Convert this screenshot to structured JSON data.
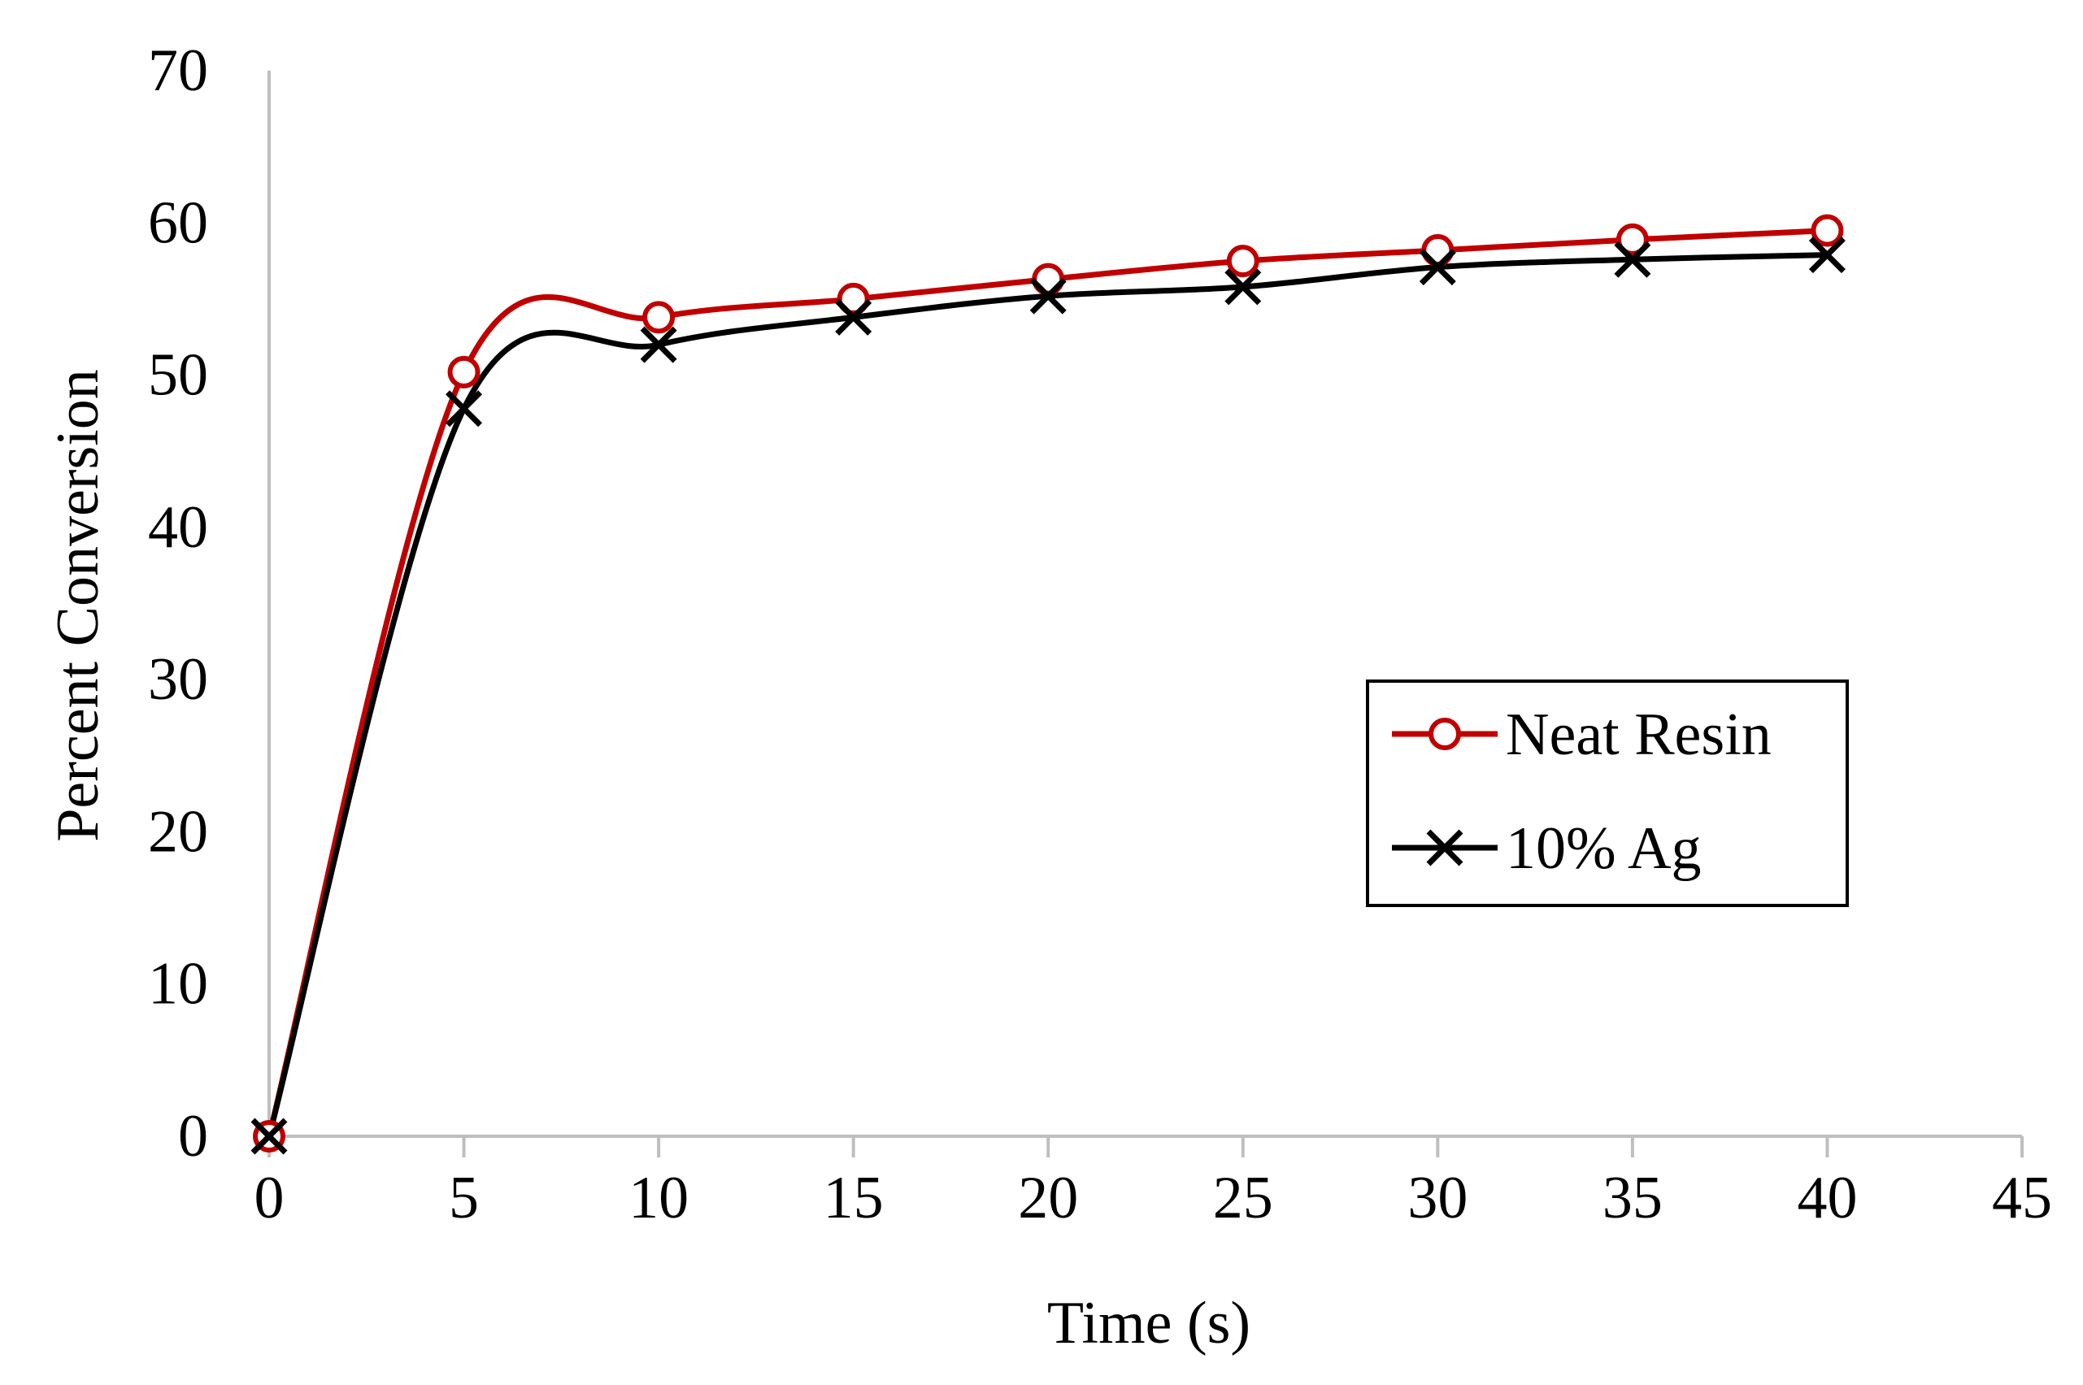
{
  "chart_data": {
    "type": "line",
    "title": "",
    "xlabel": "Time (s)",
    "ylabel": "Percent Conversion",
    "xlim": [
      0,
      45
    ],
    "ylim": [
      0,
      70
    ],
    "xticks": [
      0,
      5,
      10,
      15,
      20,
      25,
      30,
      35,
      40,
      45
    ],
    "yticks": [
      0,
      10,
      20,
      30,
      40,
      50,
      60,
      70
    ],
    "grid": false,
    "smooth": true,
    "legend_position": "right-center",
    "x": [
      0,
      5,
      10,
      15,
      20,
      25,
      30,
      35,
      40
    ],
    "series": [
      {
        "name": "Neat Resin",
        "marker": "circle",
        "color": "#c00000",
        "values": [
          0,
          50.2,
          53.8,
          55.0,
          56.3,
          57.5,
          58.2,
          58.9,
          59.5
        ]
      },
      {
        "name": "10% Ag",
        "marker": "x",
        "color": "#000000",
        "values": [
          0,
          47.8,
          52.0,
          53.8,
          55.2,
          55.8,
          57.1,
          57.6,
          57.9
        ]
      }
    ]
  }
}
